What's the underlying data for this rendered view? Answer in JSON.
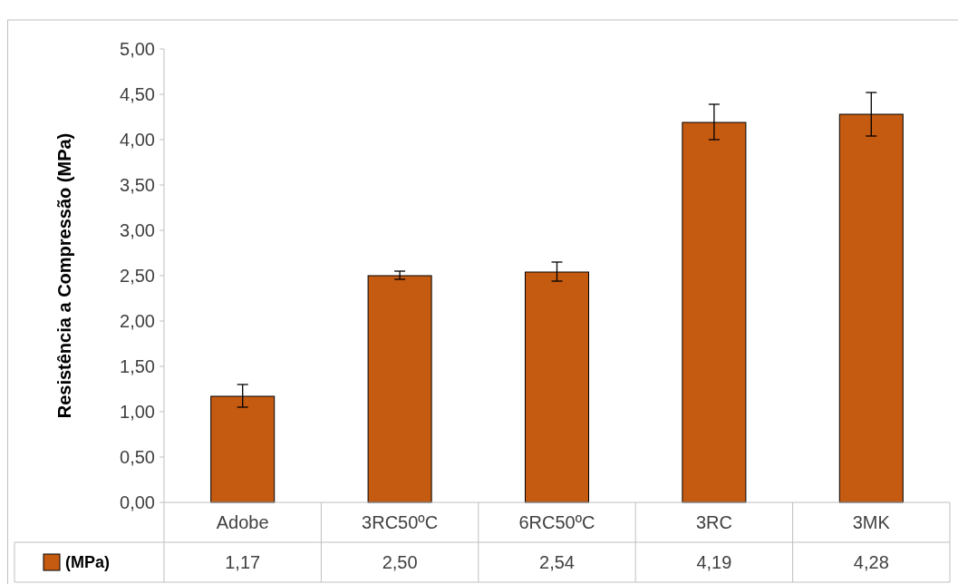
{
  "chart_data": {
    "type": "bar",
    "ylabel": "Resistência a Compressão (MPa)",
    "categories": [
      "Adobe",
      "3RC50ºC",
      "6RC50ºC",
      "3RC",
      "3MK"
    ],
    "series": [
      {
        "name": "(MPa)",
        "color": "#c55a11",
        "values": [
          1.17,
          2.5,
          2.54,
          4.19,
          4.28
        ],
        "errors": [
          [
            1.05,
            1.3
          ],
          [
            2.46,
            2.55
          ],
          [
            2.44,
            2.65
          ],
          [
            4.0,
            4.39
          ],
          [
            4.04,
            4.52
          ]
        ],
        "value_labels": [
          "1,17",
          "2,50",
          "2,54",
          "4,19",
          "4,28"
        ]
      }
    ],
    "ylim": [
      0,
      5
    ],
    "yticks": [
      {
        "value": 0,
        "label": "0,00"
      },
      {
        "value": 0.5,
        "label": "0,50"
      },
      {
        "value": 1,
        "label": "1,00"
      },
      {
        "value": 1.5,
        "label": "1,50"
      },
      {
        "value": 2,
        "label": "2,00"
      },
      {
        "value": 2.5,
        "label": "2,50"
      },
      {
        "value": 3,
        "label": "3,00"
      },
      {
        "value": 3.5,
        "label": "3,50"
      },
      {
        "value": 4,
        "label": "4,00"
      },
      {
        "value": 4.5,
        "label": "4,50"
      },
      {
        "value": 5,
        "label": "5,00"
      }
    ],
    "legend": "bottom"
  }
}
